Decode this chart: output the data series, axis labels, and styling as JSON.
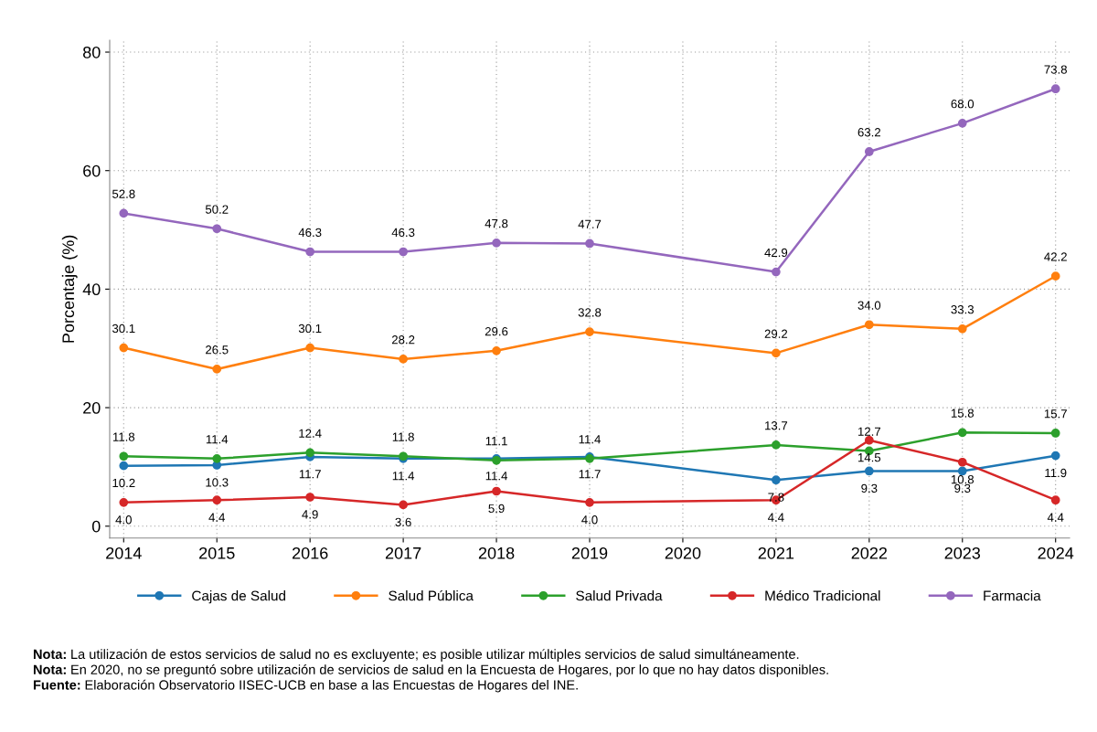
{
  "chart_data": {
    "type": "line",
    "ylabel": "Porcentaje (%)",
    "xlim": [
      2013.85,
      2024.15
    ],
    "xticks": [
      2014,
      2015,
      2016,
      2017,
      2018,
      2019,
      2020,
      2021,
      2022,
      2023,
      2024
    ],
    "ylim": [
      -2,
      82
    ],
    "yticks": [
      0,
      20,
      40,
      60,
      80
    ],
    "grid": true,
    "legend": "bottom",
    "marker": "circle",
    "line_style": "solid",
    "series": [
      {
        "name": "Cajas de Salud",
        "color": "#1f77b4",
        "x": [
          2014,
          2015,
          2016,
          2017,
          2018,
          2019,
          2021,
          2022,
          2023,
          2024
        ],
        "values": [
          10.2,
          10.3,
          11.7,
          11.4,
          11.4,
          11.7,
          7.8,
          9.3,
          9.3,
          11.9
        ],
        "value_labels": [
          "10.2",
          "10.3",
          "11.7",
          "11.4",
          "11.4",
          "11.7",
          "7.8",
          "9.3",
          "9.3",
          "11.9"
        ]
      },
      {
        "name": "Salud Pública",
        "color": "#ff7f0e",
        "x": [
          2014,
          2015,
          2016,
          2017,
          2018,
          2019,
          2021,
          2022,
          2023,
          2024
        ],
        "values": [
          30.1,
          26.5,
          30.1,
          28.2,
          29.6,
          32.8,
          29.2,
          34.0,
          33.3,
          42.2
        ],
        "value_labels": [
          "30.1",
          "26.5",
          "30.1",
          "28.2",
          "29.6",
          "32.8",
          "29.2",
          "34.0",
          "33.3",
          "42.2"
        ]
      },
      {
        "name": "Salud Privada",
        "color": "#2ca02c",
        "x": [
          2014,
          2015,
          2016,
          2017,
          2018,
          2019,
          2021,
          2022,
          2023,
          2024
        ],
        "values": [
          11.8,
          11.4,
          12.4,
          11.8,
          11.1,
          11.4,
          13.7,
          12.7,
          15.8,
          15.7
        ],
        "value_labels": [
          "11.8",
          "11.4",
          "12.4",
          "11.8",
          "11.1",
          "11.4",
          "13.7",
          "12.7",
          "15.8",
          "15.7"
        ]
      },
      {
        "name": "Médico Tradicional",
        "color": "#d62728",
        "x": [
          2014,
          2015,
          2016,
          2017,
          2018,
          2019,
          2021,
          2022,
          2023,
          2024
        ],
        "values": [
          4.0,
          4.4,
          4.9,
          3.6,
          5.9,
          4.0,
          4.4,
          14.5,
          10.8,
          4.4
        ],
        "value_labels": [
          "4.0",
          "4.4",
          "4.9",
          "3.6",
          "5.9",
          "4.0",
          "4.4",
          "14.5",
          "10.8",
          "4.4"
        ]
      },
      {
        "name": "Farmacia",
        "color": "#9467bd",
        "x": [
          2014,
          2015,
          2016,
          2017,
          2018,
          2019,
          2021,
          2022,
          2023,
          2024
        ],
        "values": [
          52.8,
          50.2,
          46.3,
          46.3,
          47.8,
          47.7,
          42.9,
          63.2,
          68.0,
          73.8
        ],
        "value_labels": [
          "52.8",
          "50.2",
          "46.3",
          "46.3",
          "47.8",
          "47.7",
          "42.9",
          "63.2",
          "68.0",
          "73.8"
        ]
      }
    ],
    "annotations": [
      "Nota: La utilización de estos servicios de salud no es excluyente; es posible utilizar múltiples servicios de salud simultáneamente.",
      "Nota: En 2020, no se preguntó sobre utilización de servicios de salud en la Encuesta de Hogares, por lo que no hay datos disponibles.",
      "Fuente: Elaboración Observatorio IISEC-UCB en base a las Encuestas de Hogares del INE."
    ]
  }
}
